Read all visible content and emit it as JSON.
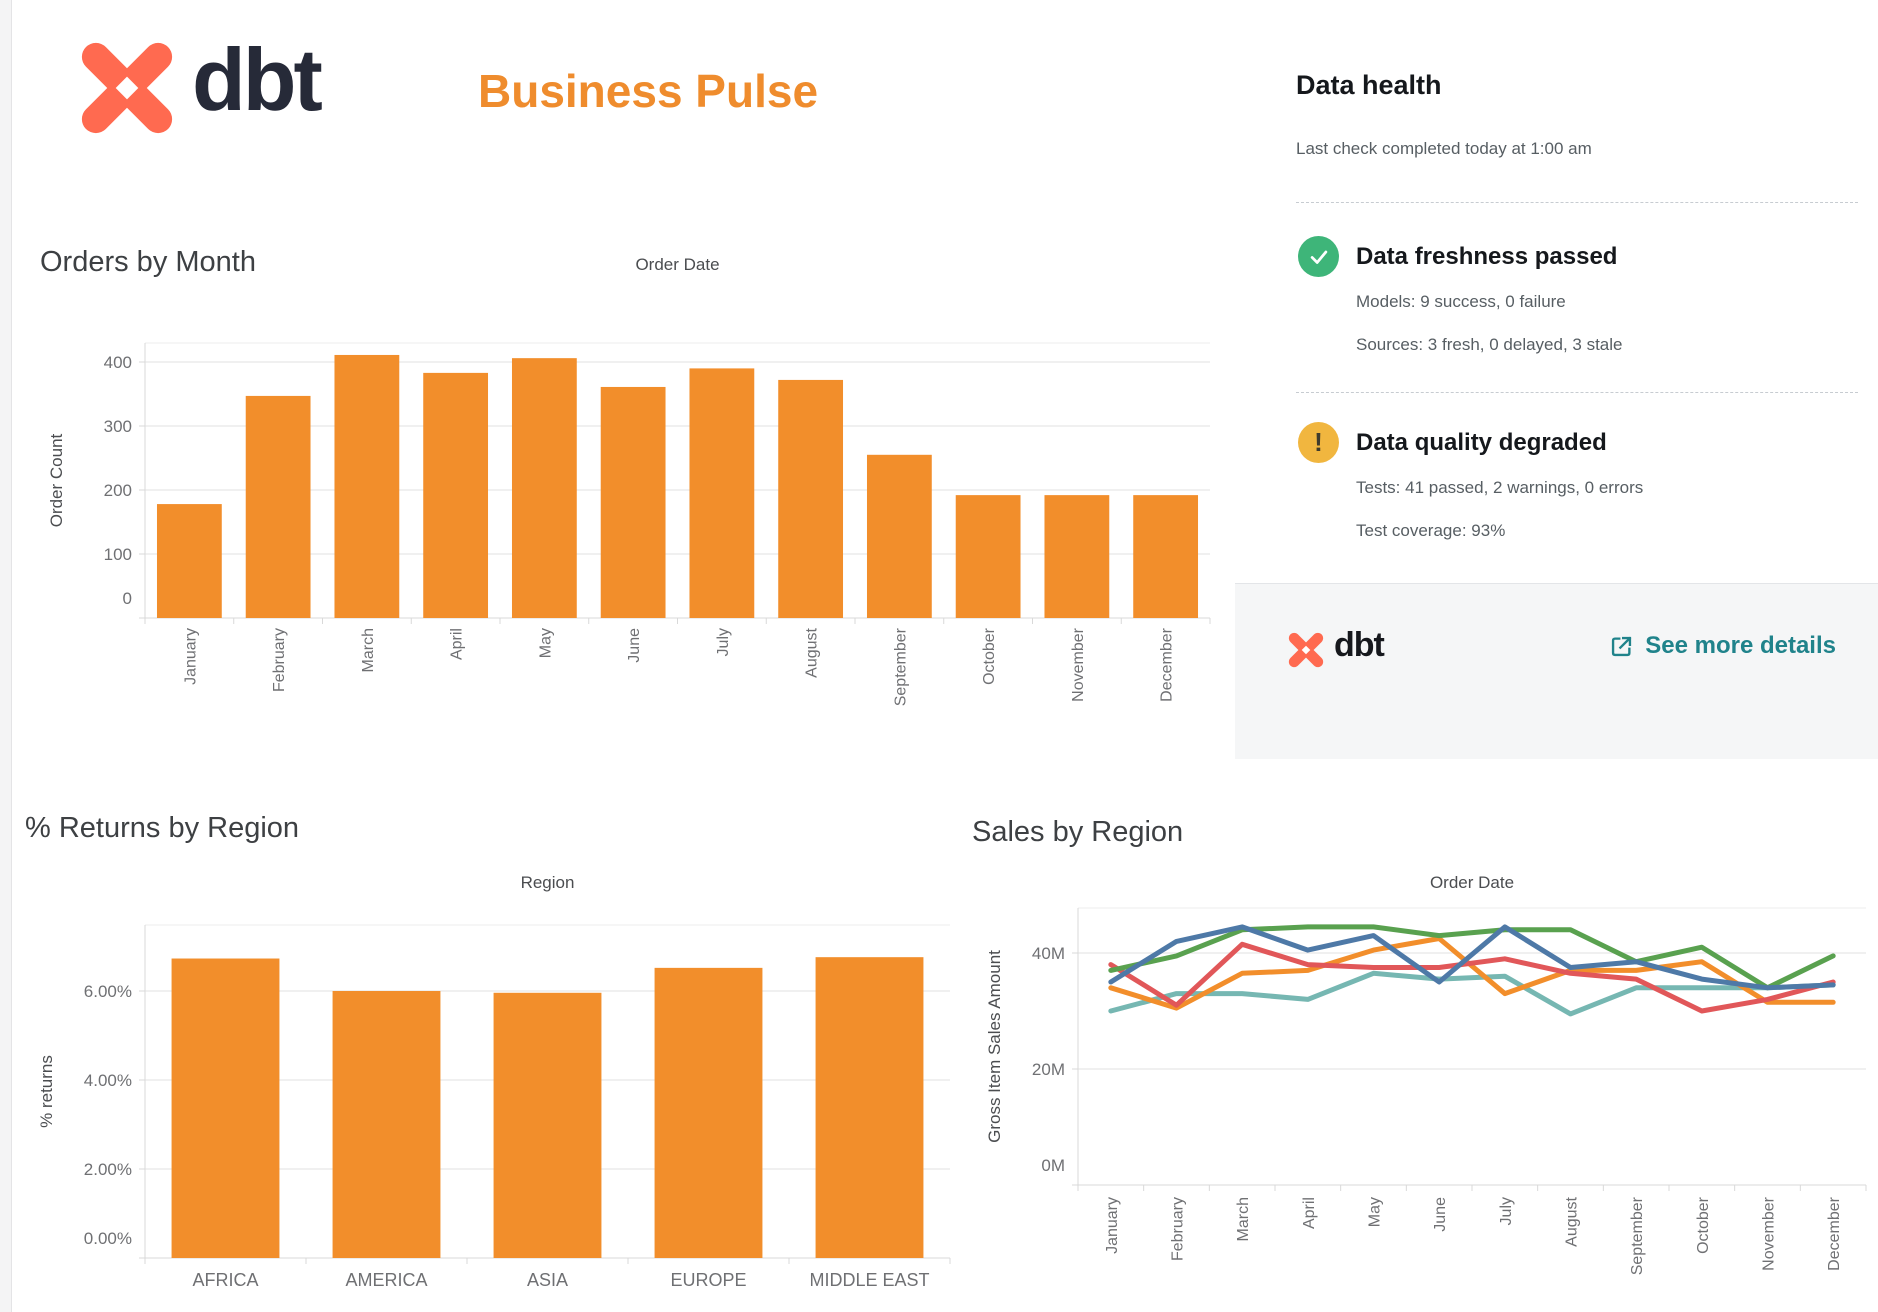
{
  "header": {
    "logo_text": "dbt",
    "title": "Business Pulse"
  },
  "data_health": {
    "title": "Data health",
    "subtitle": "Last check completed today at 1:00 am",
    "items": [
      {
        "status": "success",
        "title": "Data freshness passed",
        "lines": [
          "Models: 9 success, 0 failure",
          "Sources: 3 fresh, 0 delayed, 3 stale"
        ]
      },
      {
        "status": "warning",
        "title": "Data quality degraded",
        "lines": [
          "Tests: 41 passed, 2 warnings, 0 errors",
          "Test coverage: 93%"
        ]
      }
    ],
    "footer": {
      "logo_text": "dbt",
      "link_label": "See more details"
    }
  },
  "colors": {
    "dbt_coral": "#ff6a50",
    "dbt_navy": "#262a38",
    "title_orange": "#ef8c2d",
    "bar_orange": "#f28e2b",
    "success_green": "#3eb579",
    "warning_yellow": "#f1b63f",
    "link_teal": "#20838b",
    "gridline": "#ececec",
    "axis_line": "#d9d9d9"
  },
  "chart_data": [
    {
      "id": "orders_by_month",
      "type": "bar",
      "section_title": "Orders by Month",
      "title": "Order Date",
      "ylabel": "Order Count",
      "categories": [
        "January",
        "February",
        "March",
        "April",
        "May",
        "June",
        "July",
        "August",
        "September",
        "October",
        "November",
        "December"
      ],
      "values": [
        178,
        347,
        411,
        383,
        406,
        361,
        390,
        372,
        255,
        192,
        192,
        192
      ],
      "ytick_values": [
        0,
        100,
        200,
        300,
        400
      ],
      "ytick_labels": [
        "0",
        "100",
        "200",
        "300",
        "400"
      ],
      "ylim": [
        0,
        430
      ],
      "bar_color": "#f28e2b",
      "grid": true,
      "legend": "none"
    },
    {
      "id": "returns_by_region",
      "type": "bar",
      "section_title": "% Returns by Region",
      "title": "Region",
      "ylabel": "% returns",
      "categories": [
        "AFRICA",
        "AMERICA",
        "ASIA",
        "EUROPE",
        "MIDDLE EAST"
      ],
      "values": [
        6.73,
        6.0,
        5.96,
        6.52,
        6.76
      ],
      "ytick_values": [
        0,
        2,
        4,
        6
      ],
      "ytick_labels": [
        "0.00%",
        "2.00%",
        "4.00%",
        "6.00%"
      ],
      "ylim": [
        0,
        7.48
      ],
      "bar_color": "#f28e2b",
      "grid": true,
      "legend": "none"
    },
    {
      "id": "sales_by_region",
      "type": "line",
      "section_title": "Sales by Region",
      "title": "Order Date",
      "ylabel": "Gross Item Sales Amount",
      "x": [
        "January",
        "February",
        "March",
        "April",
        "May",
        "June",
        "July",
        "August",
        "September",
        "October",
        "November",
        "December"
      ],
      "ytick_values": [
        0,
        20,
        40
      ],
      "ytick_labels": [
        "0M",
        "20M",
        "40M"
      ],
      "ylim": [
        0,
        47.8
      ],
      "grid": true,
      "legend": "none",
      "series": [
        {
          "name": "series-teal",
          "color": "#76b7b2",
          "values": [
            30,
            33,
            33,
            32,
            36.5,
            35.5,
            36,
            29.5,
            34,
            34,
            34,
            34.5
          ]
        },
        {
          "name": "series-orange",
          "color": "#f28e2b",
          "values": [
            34,
            30.5,
            36.5,
            37,
            40.5,
            42.5,
            33,
            37,
            37,
            38.5,
            31.5,
            31.5
          ]
        },
        {
          "name": "series-red",
          "color": "#e15759",
          "values": [
            38,
            31,
            41.5,
            38,
            37.5,
            37.5,
            39,
            36.5,
            35.5,
            30,
            32,
            35
          ]
        },
        {
          "name": "series-green",
          "color": "#59a14f",
          "values": [
            37,
            39.5,
            44,
            44.5,
            44.5,
            43,
            44,
            44,
            38.5,
            41,
            34,
            39.5
          ]
        },
        {
          "name": "series-blue",
          "color": "#4e79a7",
          "values": [
            35,
            42,
            44.5,
            40.5,
            43,
            35,
            44.5,
            37.5,
            38.5,
            35.5,
            34,
            34.5
          ]
        }
      ]
    }
  ]
}
